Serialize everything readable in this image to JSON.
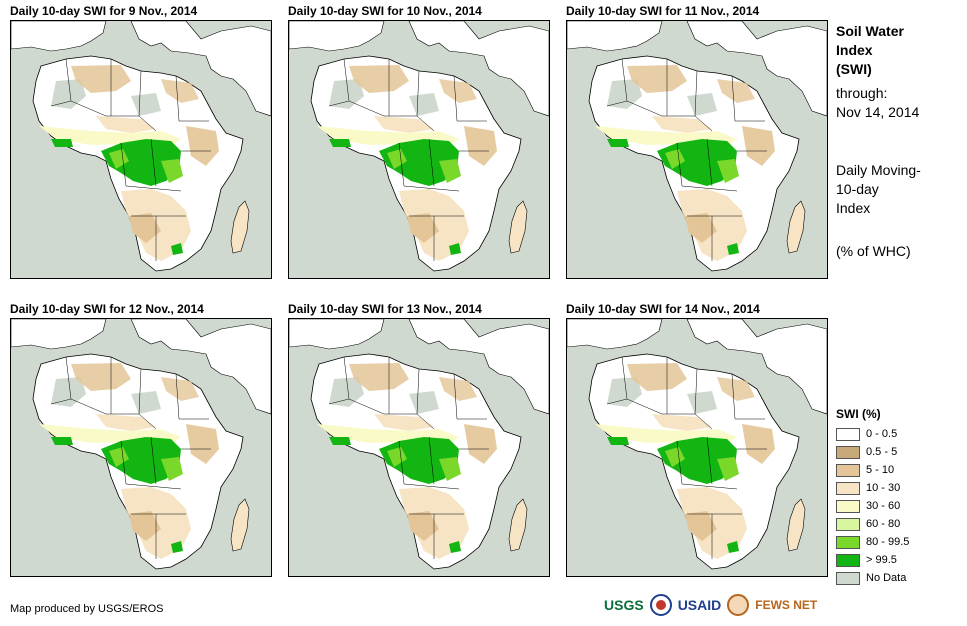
{
  "panels": [
    {
      "title": "Daily 10-day SWI for 9 Nov., 2014"
    },
    {
      "title": "Daily 10-day SWI for 10 Nov., 2014"
    },
    {
      "title": "Daily 10-day SWI for 11 Nov., 2014"
    },
    {
      "title": "Daily 10-day SWI for 12 Nov., 2014"
    },
    {
      "title": "Daily 10-day SWI for 13 Nov., 2014"
    },
    {
      "title": "Daily 10-day SWI for 14 Nov., 2014"
    }
  ],
  "side": {
    "title_line1": "Soil Water",
    "title_line2": "Index",
    "title_line3": "(SWI)",
    "through_label": "through:",
    "through_date": "Nov 14, 2014",
    "desc_line1": "Daily Moving-",
    "desc_line2": "10-day",
    "desc_line3": "Index",
    "unit": "(% of WHC)"
  },
  "legend": {
    "title": "SWI (%)",
    "items": [
      {
        "label": "0 - 0.5",
        "color": "#ffffff"
      },
      {
        "label": "0.5 - 5",
        "color": "#c8a97a"
      },
      {
        "label": "5 - 10",
        "color": "#e3c597"
      },
      {
        "label": "10 - 30",
        "color": "#f7e4c4"
      },
      {
        "label": "30 - 60",
        "color": "#fafac8"
      },
      {
        "label": "60 - 80",
        "color": "#d8f5a0"
      },
      {
        "label": "80 - 99.5",
        "color": "#7ad82a"
      },
      {
        "label": "> 99.5",
        "color": "#12b512"
      },
      {
        "label": "No Data",
        "color": "#cfd9cf"
      }
    ]
  },
  "footer": {
    "credit": "Map produced by USGS/EROS",
    "logo_usgs": "USGS",
    "logo_usaid": "USAID",
    "logo_fews": "FEWS NET"
  }
}
